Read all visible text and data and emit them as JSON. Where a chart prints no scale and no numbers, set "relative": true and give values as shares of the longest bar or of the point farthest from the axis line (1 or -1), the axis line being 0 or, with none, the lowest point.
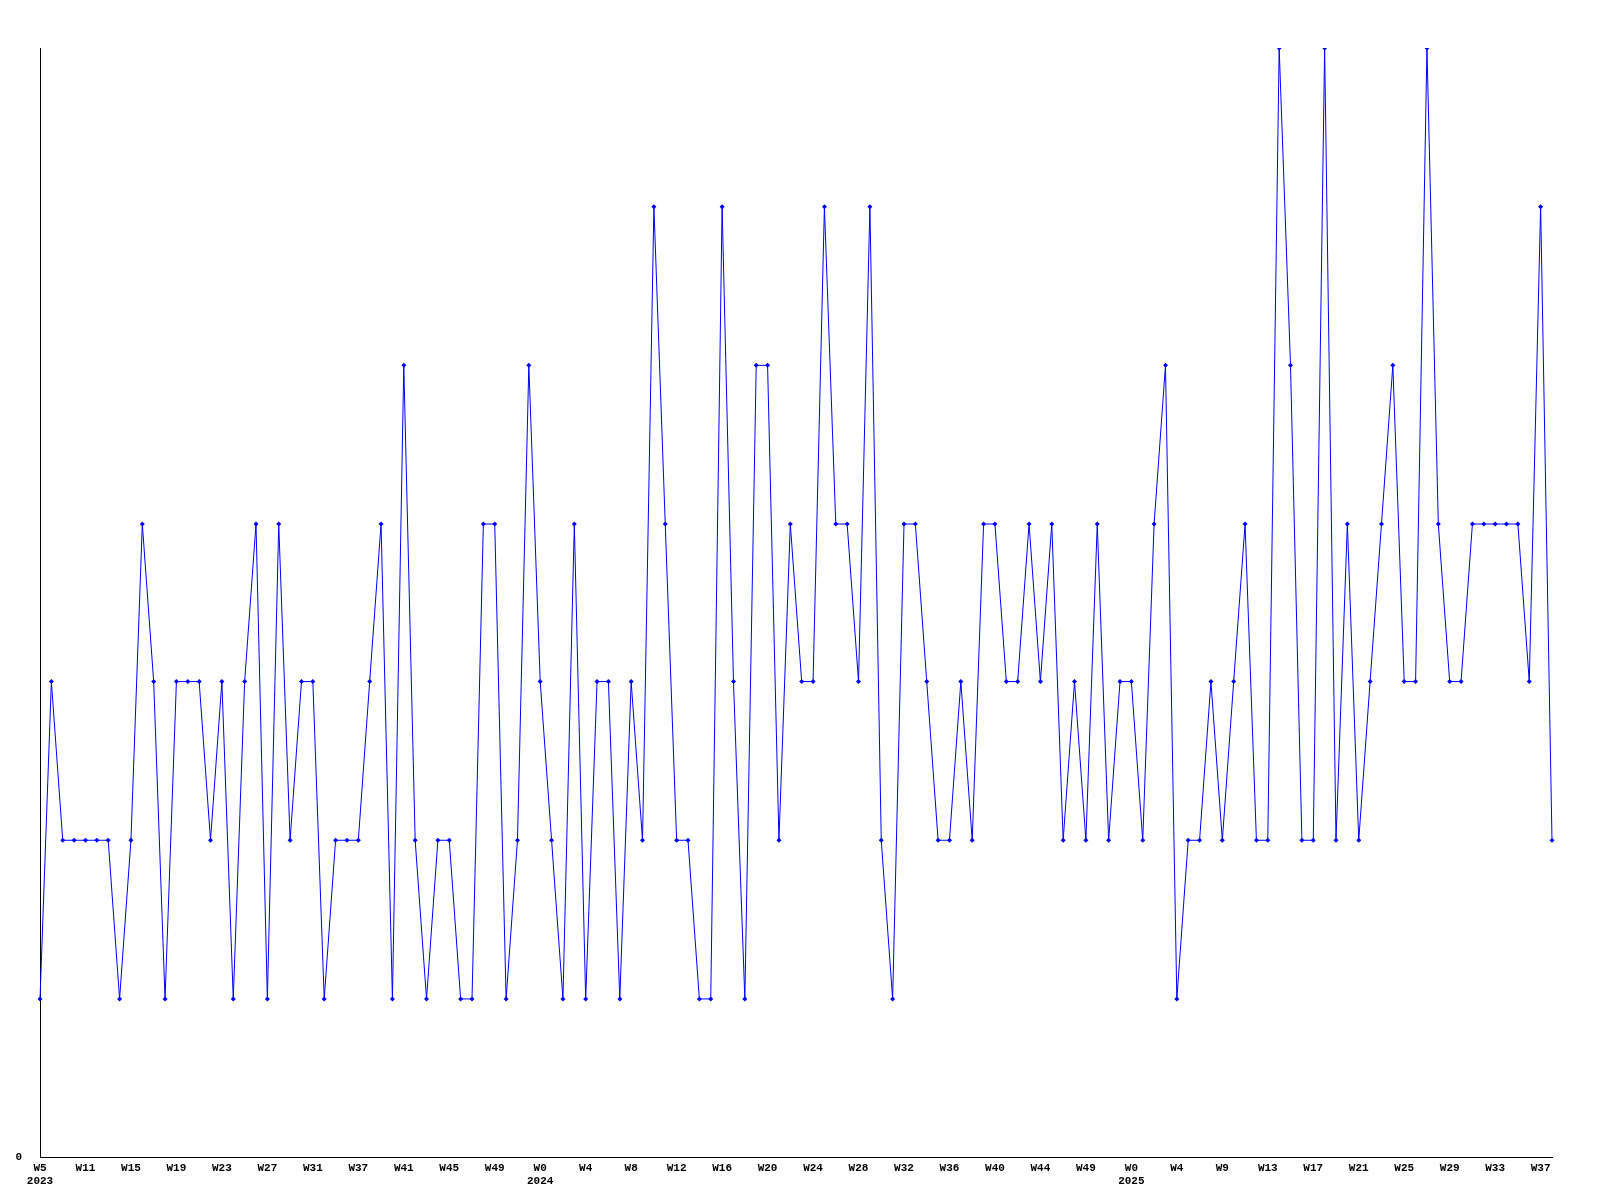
{
  "chart_data": {
    "type": "line",
    "relative": true,
    "color": "#0000ff",
    "marker": "diamond",
    "line_style": "solid",
    "grid": false,
    "legend": false,
    "annotations": [
      "0"
    ],
    "categories": [
      "W5\n2023",
      null,
      null,
      null,
      "W11",
      null,
      null,
      null,
      "W15",
      null,
      null,
      null,
      "W19",
      null,
      null,
      null,
      "W23",
      null,
      null,
      null,
      "W27",
      null,
      null,
      null,
      "W31",
      null,
      null,
      null,
      "W37",
      null,
      null,
      null,
      "W41",
      null,
      null,
      null,
      "W45",
      null,
      null,
      null,
      "W49",
      null,
      null,
      null,
      "W0\n2024",
      null,
      null,
      null,
      "W4",
      null,
      null,
      null,
      "W8",
      null,
      null,
      null,
      "W12",
      null,
      null,
      null,
      "W16",
      null,
      null,
      null,
      "W20",
      null,
      null,
      null,
      "W24",
      null,
      null,
      null,
      "W28",
      null,
      null,
      null,
      "W32",
      null,
      null,
      null,
      "W36",
      null,
      null,
      null,
      "W40",
      null,
      null,
      null,
      "W44",
      null,
      null,
      null,
      "W49",
      null,
      null,
      null,
      "W0\n2025",
      null,
      null,
      null,
      "W4",
      null,
      null,
      null,
      "W9",
      null,
      null,
      null,
      "W13",
      null,
      null,
      null,
      "W17",
      null,
      null,
      null,
      "W21",
      null,
      null,
      null,
      "W25",
      null,
      null,
      null,
      "W29",
      null,
      null,
      null,
      "W33",
      null,
      null,
      null,
      "W37",
      null
    ],
    "values": [
      0.143,
      0.429,
      0.286,
      0.286,
      0.286,
      0.286,
      0.286,
      0.143,
      0.286,
      0.571,
      0.429,
      0.143,
      0.429,
      0.429,
      0.429,
      0.286,
      0.429,
      0.143,
      0.429,
      0.571,
      0.143,
      0.571,
      0.286,
      0.429,
      0.429,
      0.143,
      0.286,
      0.286,
      0.286,
      0.429,
      0.571,
      0.143,
      0.714,
      0.286,
      0.143,
      0.286,
      0.286,
      0.143,
      0.143,
      0.571,
      0.571,
      0.143,
      0.286,
      0.714,
      0.429,
      0.286,
      0.143,
      0.571,
      0.143,
      0.429,
      0.429,
      0.143,
      0.429,
      0.286,
      0.857,
      0.571,
      0.286,
      0.286,
      0.143,
      0.143,
      0.857,
      0.429,
      0.143,
      0.714,
      0.714,
      0.286,
      0.571,
      0.429,
      0.429,
      0.857,
      0.571,
      0.571,
      0.429,
      0.857,
      0.286,
      0.143,
      0.571,
      0.571,
      0.429,
      0.286,
      0.286,
      0.429,
      0.286,
      0.571,
      0.571,
      0.429,
      0.429,
      0.571,
      0.429,
      0.571,
      0.286,
      0.429,
      0.286,
      0.571,
      0.286,
      0.429,
      0.429,
      0.286,
      0.571,
      0.714,
      0.143,
      0.286,
      0.286,
      0.429,
      0.286,
      0.429,
      0.571,
      0.286,
      0.286,
      1,
      0.714,
      0.286,
      0.286,
      1,
      0.286,
      0.571,
      0.286,
      0.429,
      0.571,
      0.714,
      0.429,
      0.429,
      1,
      0.571,
      0.429,
      0.429,
      0.571,
      0.571,
      0.571,
      0.571,
      0.571,
      0.429,
      0.857,
      0.286
    ]
  }
}
